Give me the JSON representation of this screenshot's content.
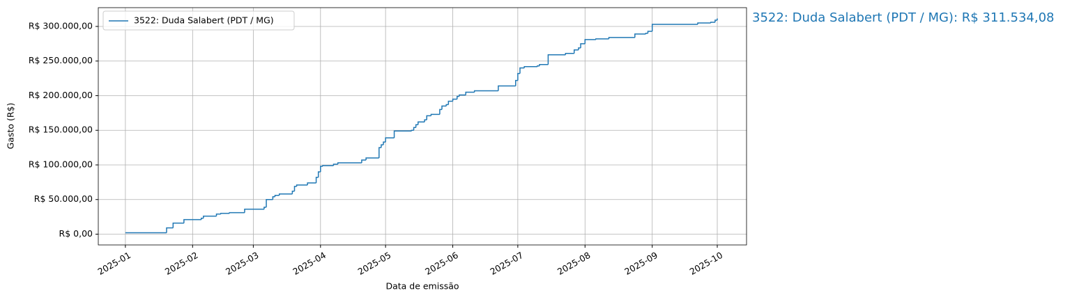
{
  "chart_data": {
    "type": "step",
    "ylabel": "Gasto (R$)",
    "xlabel": "Data de emissão",
    "annotation": "3522: Duda Salabert (PDT / MG): R$ 311.534,08",
    "grid": true,
    "legend": "upper left",
    "xlim": [
      -12.5,
      286.5
    ],
    "ylim": [
      -15577,
      327111
    ],
    "xticks": [
      {
        "value": 0,
        "label": "2025-01"
      },
      {
        "value": 31,
        "label": "2025-02"
      },
      {
        "value": 59,
        "label": "2025-03"
      },
      {
        "value": 90,
        "label": "2025-04"
      },
      {
        "value": 120,
        "label": "2025-05"
      },
      {
        "value": 151,
        "label": "2025-06"
      },
      {
        "value": 181,
        "label": "2025-07"
      },
      {
        "value": 212,
        "label": "2025-08"
      },
      {
        "value": 243,
        "label": "2025-09"
      },
      {
        "value": 273,
        "label": "2025-10"
      }
    ],
    "yticks": [
      {
        "value": 0,
        "label": "R$ 0,00"
      },
      {
        "value": 50000,
        "label": "R$ 50.000,00"
      },
      {
        "value": 100000,
        "label": "R$ 100.000,00"
      },
      {
        "value": 150000,
        "label": "R$ 150.000,00"
      },
      {
        "value": 200000,
        "label": "R$ 200.000,00"
      },
      {
        "value": 250000,
        "label": "R$ 250.000,00"
      },
      {
        "value": 300000,
        "label": "R$ 300.000,00"
      }
    ],
    "x": [
      0,
      19,
      22,
      27,
      35,
      36,
      42,
      44,
      48,
      55,
      64,
      65,
      68,
      69,
      71,
      77,
      78,
      79,
      84,
      88,
      89,
      90,
      91,
      96,
      98,
      109,
      111,
      117,
      118,
      119,
      120,
      124,
      132,
      133,
      134,
      135,
      138,
      139,
      141,
      145,
      146,
      148,
      149,
      151,
      153,
      154,
      157,
      161,
      172,
      180,
      181,
      182,
      184,
      190,
      191,
      195,
      203,
      207,
      209,
      210,
      212,
      217,
      223,
      235,
      240,
      241,
      243,
      264,
      270,
      272,
      273
    ],
    "series": [
      {
        "name": "3522: Duda Salabert (PDT / MG)",
        "color": "#1f77b4",
        "values": [
          2000,
          9000,
          16000,
          21000,
          23000,
          26000,
          29000,
          30000,
          31000,
          36000,
          39000,
          50000,
          54000,
          56000,
          58000,
          62000,
          69000,
          71000,
          74000,
          82000,
          90000,
          98000,
          99000,
          101000,
          103000,
          107000,
          110000,
          125000,
          129000,
          133000,
          139000,
          149000,
          150000,
          154000,
          158000,
          162000,
          165000,
          171000,
          173000,
          180000,
          185000,
          187000,
          192000,
          195000,
          199000,
          201000,
          205000,
          207000,
          214000,
          222000,
          232000,
          240000,
          242000,
          243000,
          245000,
          259000,
          261000,
          266000,
          269000,
          275000,
          281000,
          282000,
          284000,
          289000,
          290000,
          293000,
          303000,
          305000,
          306000,
          309000,
          311534.08
        ]
      }
    ]
  }
}
